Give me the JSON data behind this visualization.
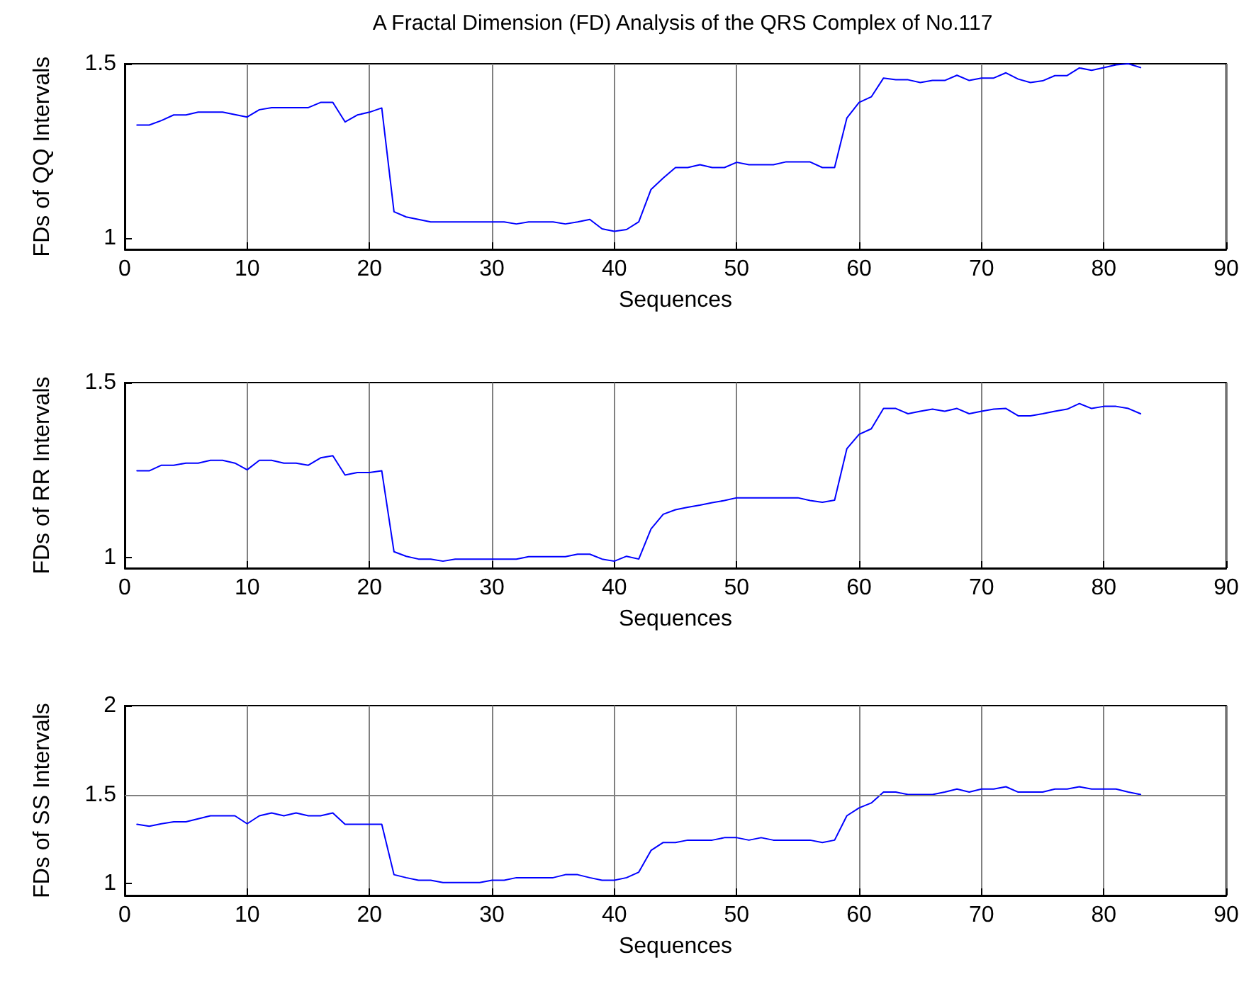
{
  "chart_data": [
    {
      "type": "line",
      "title": "A Fractal Dimension (FD) Analysis of the QRS Complex of No.117",
      "xlabel": "Sequences",
      "ylabel": "FDs of QQ Intervals",
      "marker": "none",
      "grid": "x",
      "xlim": [
        0,
        90
      ],
      "xticks": [
        0,
        10,
        20,
        30,
        40,
        50,
        60,
        70,
        80,
        90
      ],
      "ylim": [
        0.967,
        1.5
      ],
      "yticks": [
        1,
        1.5
      ],
      "x": [
        1,
        2,
        3,
        4,
        5,
        6,
        7,
        8,
        9,
        10,
        11,
        12,
        13,
        14,
        15,
        16,
        17,
        18,
        19,
        20,
        21,
        22,
        23,
        24,
        25,
        26,
        27,
        28,
        29,
        30,
        31,
        32,
        33,
        34,
        35,
        36,
        37,
        38,
        39,
        40,
        41,
        42,
        43,
        44,
        45,
        46,
        47,
        48,
        49,
        50,
        51,
        52,
        53,
        54,
        55,
        56,
        57,
        58,
        59,
        60,
        61,
        62,
        63,
        64,
        65,
        66,
        67,
        68,
        69,
        70,
        71,
        72,
        73,
        74,
        75,
        76,
        77,
        78,
        79,
        80,
        81,
        82,
        83
      ],
      "series": [
        {
          "color": "#0000ff",
          "values": [
            1.324,
            1.324,
            1.337,
            1.353,
            1.353,
            1.361,
            1.361,
            1.361,
            1.354,
            1.347,
            1.368,
            1.374,
            1.374,
            1.374,
            1.374,
            1.389,
            1.389,
            1.333,
            1.353,
            1.361,
            1.373,
            1.075,
            1.06,
            1.053,
            1.046,
            1.046,
            1.046,
            1.046,
            1.046,
            1.046,
            1.046,
            1.04,
            1.046,
            1.046,
            1.046,
            1.04,
            1.046,
            1.053,
            1.026,
            1.019,
            1.024,
            1.046,
            1.139,
            1.172,
            1.202,
            1.202,
            1.21,
            1.202,
            1.202,
            1.217,
            1.21,
            1.21,
            1.21,
            1.218,
            1.218,
            1.218,
            1.202,
            1.202,
            1.344,
            1.389,
            1.405,
            1.459,
            1.454,
            1.454,
            1.446,
            1.452,
            1.452,
            1.467,
            1.452,
            1.459,
            1.459,
            1.474,
            1.456,
            1.446,
            1.451,
            1.466,
            1.466,
            1.488,
            1.481,
            1.489,
            1.497,
            1.5,
            1.489
          ]
        }
      ]
    },
    {
      "type": "line",
      "xlabel": "Sequences",
      "ylabel": "FDs of RR Intervals",
      "marker": "none",
      "grid": "x",
      "xlim": [
        0,
        90
      ],
      "xticks": [
        0,
        10,
        20,
        30,
        40,
        50,
        60,
        70,
        80,
        90
      ],
      "ylim": [
        0.97,
        1.5
      ],
      "yticks": [
        1,
        1.5
      ],
      "x": [
        1,
        2,
        3,
        4,
        5,
        6,
        7,
        8,
        9,
        10,
        11,
        12,
        13,
        14,
        15,
        16,
        17,
        18,
        19,
        20,
        21,
        22,
        23,
        24,
        25,
        26,
        27,
        28,
        29,
        30,
        31,
        32,
        33,
        34,
        35,
        36,
        37,
        38,
        39,
        40,
        41,
        42,
        43,
        44,
        45,
        46,
        47,
        48,
        49,
        50,
        51,
        52,
        53,
        54,
        55,
        56,
        57,
        58,
        59,
        60,
        61,
        62,
        63,
        64,
        65,
        66,
        67,
        68,
        69,
        70,
        71,
        72,
        73,
        74,
        75,
        76,
        77,
        78,
        79,
        80,
        81,
        82,
        83
      ],
      "series": [
        {
          "color": "#0000ff",
          "values": [
            1.248,
            1.248,
            1.264,
            1.264,
            1.27,
            1.27,
            1.278,
            1.278,
            1.27,
            1.251,
            1.278,
            1.278,
            1.27,
            1.27,
            1.264,
            1.285,
            1.291,
            1.236,
            1.243,
            1.243,
            1.248,
            1.017,
            1.004,
            0.996,
            0.996,
            0.99,
            0.996,
            0.996,
            0.996,
            0.996,
            0.996,
            0.996,
            1.003,
            1.003,
            1.003,
            1.003,
            1.01,
            1.01,
            0.996,
            0.99,
            1.004,
            0.996,
            1.082,
            1.124,
            1.137,
            1.144,
            1.15,
            1.157,
            1.163,
            1.171,
            1.171,
            1.171,
            1.171,
            1.171,
            1.171,
            1.163,
            1.158,
            1.164,
            1.311,
            1.352,
            1.368,
            1.426,
            1.426,
            1.411,
            1.418,
            1.424,
            1.418,
            1.426,
            1.411,
            1.418,
            1.424,
            1.426,
            1.405,
            1.405,
            1.411,
            1.418,
            1.424,
            1.44,
            1.426,
            1.432,
            1.432,
            1.426,
            1.411
          ]
        }
      ]
    },
    {
      "type": "line",
      "xlabel": "Sequences",
      "ylabel": "FDs of SS Intervals",
      "marker": "none",
      "grid": "x",
      "xlim": [
        0,
        90
      ],
      "xticks": [
        0,
        10,
        20,
        30,
        40,
        50,
        60,
        70,
        80,
        90
      ],
      "ylim": [
        0.933,
        2
      ],
      "yticks": [
        1,
        1.5,
        2
      ],
      "ref_lines": [
        {
          "axis": "y",
          "value": 1.5
        }
      ],
      "x": [
        1,
        2,
        3,
        4,
        5,
        6,
        7,
        8,
        9,
        10,
        11,
        12,
        13,
        14,
        15,
        16,
        17,
        18,
        19,
        20,
        21,
        22,
        23,
        24,
        25,
        26,
        27,
        28,
        29,
        30,
        31,
        32,
        33,
        34,
        35,
        36,
        37,
        38,
        39,
        40,
        41,
        42,
        43,
        44,
        45,
        46,
        47,
        48,
        49,
        50,
        51,
        52,
        53,
        54,
        55,
        56,
        57,
        58,
        59,
        60,
        61,
        62,
        63,
        64,
        65,
        66,
        67,
        68,
        69,
        70,
        71,
        72,
        73,
        74,
        75,
        76,
        77,
        78,
        79,
        80,
        81,
        82,
        83
      ],
      "series": [
        {
          "color": "#0000ff",
          "values": [
            1.333,
            1.322,
            1.336,
            1.347,
            1.347,
            1.364,
            1.381,
            1.381,
            1.381,
            1.336,
            1.381,
            1.397,
            1.381,
            1.397,
            1.381,
            1.381,
            1.397,
            1.333,
            1.333,
            1.333,
            1.333,
            1.05,
            1.033,
            1.019,
            1.019,
            1.006,
            1.006,
            1.006,
            1.006,
            1.019,
            1.019,
            1.033,
            1.033,
            1.033,
            1.033,
            1.05,
            1.05,
            1.033,
            1.019,
            1.019,
            1.033,
            1.064,
            1.186,
            1.231,
            1.231,
            1.244,
            1.244,
            1.244,
            1.258,
            1.258,
            1.244,
            1.258,
            1.244,
            1.244,
            1.244,
            1.244,
            1.231,
            1.244,
            1.381,
            1.425,
            1.453,
            1.514,
            1.514,
            1.5,
            1.5,
            1.5,
            1.514,
            1.531,
            1.514,
            1.531,
            1.531,
            1.544,
            1.514,
            1.514,
            1.514,
            1.531,
            1.531,
            1.544,
            1.531,
            1.531,
            1.531,
            1.514,
            1.5
          ]
        }
      ]
    }
  ]
}
